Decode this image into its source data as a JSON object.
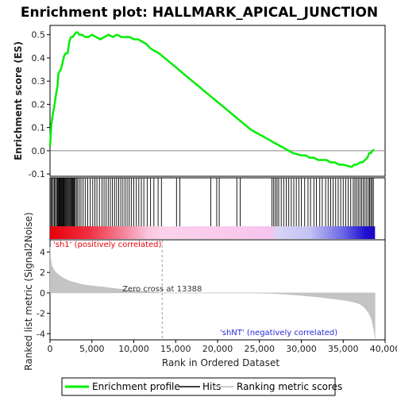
{
  "chart_data": {
    "type": "line",
    "title": "Enrichment plot: HALLMARK_APICAL_JUNCTION",
    "xlabel": "Rank in Ordered Dataset",
    "ylabel_top": "Enrichment score (ES)",
    "ylabel_bottom": "Ranked list metric (Signal2Noise)",
    "xlim": [
      0,
      40000
    ],
    "x_ticks": [
      0,
      5000,
      10000,
      15000,
      20000,
      25000,
      30000,
      35000,
      40000
    ],
    "x_tick_labels": [
      "0",
      "5,000",
      "10,000",
      "15,000",
      "20,000",
      "25,000",
      "30,000",
      "35,000",
      "40,000"
    ],
    "es_ylim": [
      -0.11,
      0.54
    ],
    "es_ticks": [
      -0.1,
      0.0,
      0.1,
      0.2,
      0.3,
      0.4,
      0.5
    ],
    "es_tick_labels": [
      "-0.1",
      "0.0",
      "0.1",
      "0.2",
      "0.3",
      "0.4",
      "0.5"
    ],
    "metric_ylim": [
      -4.6,
      5.2
    ],
    "metric_ticks": [
      -4,
      -2,
      0,
      2,
      4
    ],
    "metric_tick_labels": [
      "-4",
      "-2",
      "0",
      "2",
      "4"
    ],
    "total_ranks": 38800,
    "zero_cross_rank": 13388,
    "zero_cross_label": "Zero cross at 13388",
    "pos_label": "'sh1' (positively correlated)",
    "neg_label": "'shNT' (negatively correlated)",
    "series": [
      {
        "name": "Enrichment profile",
        "color": "#00ee00",
        "x": [
          0,
          150,
          300,
          500,
          700,
          900,
          1000,
          1100,
          1300,
          1500,
          1700,
          1900,
          2100,
          2300,
          2500,
          2700,
          2900,
          3100,
          3300,
          3500,
          3800,
          4200,
          4600,
          5000,
          5500,
          6000,
          6500,
          7000,
          7500,
          8000,
          8500,
          9000,
          9500,
          10000,
          10500,
          11000,
          11500,
          12000,
          13000,
          14000,
          15000,
          16000,
          17000,
          18000,
          19000,
          20000,
          21000,
          22000,
          23000,
          24000,
          25000,
          26000,
          27000,
          28000,
          29000,
          30000,
          30500,
          31000,
          31500,
          32000,
          32500,
          33000,
          33500,
          34000,
          34500,
          35000,
          35500,
          36000,
          36300,
          36600,
          37000,
          37300,
          37600,
          37900,
          38100,
          38300,
          38500,
          38700
        ],
        "values": [
          0.02,
          0.11,
          0.15,
          0.19,
          0.24,
          0.28,
          0.33,
          0.34,
          0.35,
          0.38,
          0.41,
          0.42,
          0.42,
          0.47,
          0.49,
          0.49,
          0.5,
          0.51,
          0.51,
          0.5,
          0.5,
          0.49,
          0.49,
          0.5,
          0.49,
          0.48,
          0.49,
          0.5,
          0.49,
          0.5,
          0.49,
          0.49,
          0.49,
          0.48,
          0.48,
          0.47,
          0.46,
          0.44,
          0.42,
          0.39,
          0.36,
          0.33,
          0.3,
          0.27,
          0.24,
          0.21,
          0.18,
          0.15,
          0.12,
          0.09,
          0.07,
          0.05,
          0.03,
          0.01,
          -0.01,
          -0.02,
          -0.02,
          -0.03,
          -0.03,
          -0.04,
          -0.04,
          -0.04,
          -0.05,
          -0.05,
          -0.06,
          -0.06,
          -0.065,
          -0.07,
          -0.06,
          -0.06,
          -0.05,
          -0.05,
          -0.04,
          -0.03,
          -0.01,
          -0.01,
          0.0,
          0.005
        ]
      },
      {
        "name": "Hits",
        "color": "#000000"
      },
      {
        "name": "Ranking metric scores",
        "color": "#bbbbbb",
        "x": [
          0,
          100,
          200,
          400,
          600,
          900,
          1200,
          1600,
          2000,
          2500,
          3000,
          3500,
          4000,
          5000,
          6000,
          7000,
          8000,
          9000,
          10000,
          11000,
          12000,
          13388,
          16000,
          20000,
          24000,
          26500,
          27000,
          28000,
          30000,
          32000,
          34000,
          35000,
          36000,
          36500,
          37000,
          37500,
          38000,
          38300,
          38500,
          38700,
          38800
        ],
        "values": [
          4.5,
          3.2,
          2.7,
          2.35,
          2.1,
          1.85,
          1.65,
          1.45,
          1.28,
          1.12,
          1.0,
          0.9,
          0.8,
          0.68,
          0.6,
          0.5,
          0.4,
          0.3,
          0.22,
          0.15,
          0.08,
          0.0,
          0.0,
          0.0,
          0.0,
          -0.05,
          -0.08,
          -0.12,
          -0.25,
          -0.4,
          -0.6,
          -0.7,
          -0.85,
          -0.95,
          -1.1,
          -1.4,
          -1.9,
          -2.4,
          -3.0,
          -3.8,
          -4.5
        ]
      }
    ],
    "hit_ranks": [
      120,
      250,
      380,
      520,
      640,
      780,
      880,
      960,
      1050,
      1140,
      1220,
      1300,
      1380,
      1460,
      1540,
      1620,
      1700,
      1800,
      1900,
      2000,
      2100,
      2200,
      2300,
      2400,
      2500,
      2600,
      2700,
      2800,
      2900,
      3000,
      3150,
      3300,
      3500,
      3700,
      3950,
      4200,
      4500,
      4800,
      5100,
      5350,
      5600,
      5900,
      6200,
      6450,
      6700,
      6950,
      7200,
      7450,
      7700,
      7950,
      8200,
      8450,
      8700,
      8950,
      9200,
      9450,
      9700,
      10000,
      10300,
      10600,
      10900,
      11200,
      11600,
      12000,
      12400,
      12900,
      13300,
      15100,
      15500,
      19200,
      19900,
      20200,
      22300,
      22700,
      26500,
      26700,
      26900,
      27100,
      27300,
      27600,
      27900,
      28200,
      28500,
      28800,
      29100,
      29400,
      29700,
      30000,
      30400,
      30800,
      31100,
      31500,
      31800,
      32200,
      32500,
      32900,
      33200,
      33500,
      33800,
      34100,
      34400,
      34700,
      35000,
      35300,
      35600,
      35900,
      36200,
      36400,
      36600,
      36800,
      37000,
      37200,
      37400,
      37600,
      37800,
      38000,
      38150,
      38300,
      38450,
      38600
    ]
  }
}
